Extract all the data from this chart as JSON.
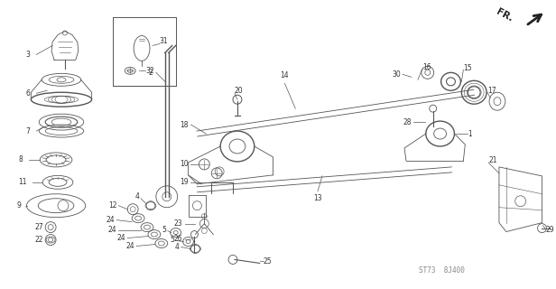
{
  "bg_color": "#ffffff",
  "line_color": "#555555",
  "part_label_color": "#333333",
  "fig_width": 6.16,
  "fig_height": 3.2,
  "dpi": 100,
  "watermark": "ST73  8J400",
  "fr_label": "FR."
}
